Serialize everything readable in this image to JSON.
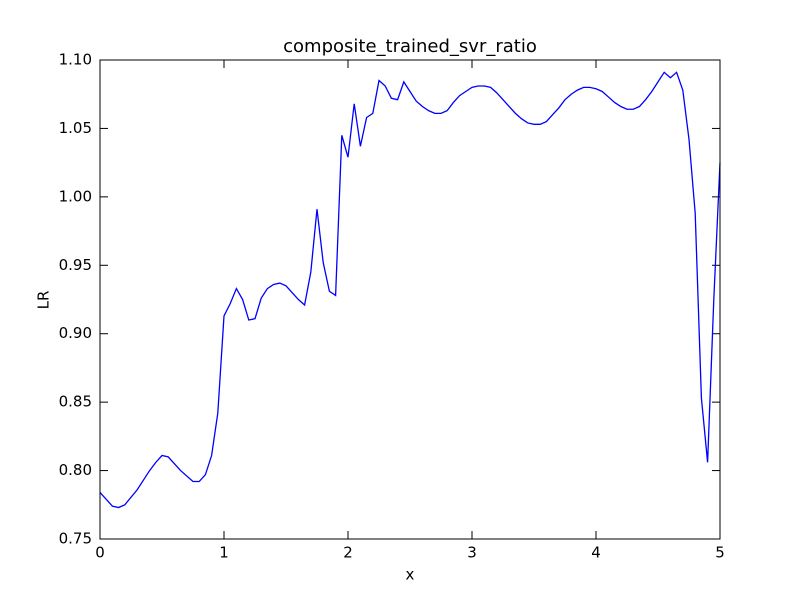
{
  "chart_data": {
    "type": "line",
    "title": "composite_trained_svr_ratio",
    "x_label": "x",
    "y_label": "LR",
    "xlim": [
      0,
      5
    ],
    "ylim": [
      0.75,
      1.1
    ],
    "xticks": [
      0,
      1,
      2,
      3,
      4,
      5
    ],
    "yticks": [
      0.75,
      {
        "value": 0.8,
        "label": "0.80"
      },
      0.85,
      {
        "value": 0.9,
        "label": "0.90"
      },
      0.95,
      {
        "value": 1.0,
        "label": "1.00"
      },
      1.05,
      {
        "value": 1.1,
        "label": "1.10"
      }
    ],
    "series": [
      {
        "color": "#0000ff",
        "x": [
          0,
          0.1,
          0.15,
          0.2,
          0.3,
          0.4,
          0.45,
          0.5,
          0.55,
          0.65,
          0.75,
          0.8,
          0.85,
          0.9,
          0.95,
          1.0,
          1.05,
          1.1,
          1.15,
          1.2,
          1.25,
          1.3,
          1.35,
          1.4,
          1.45,
          1.5,
          1.55,
          1.6,
          1.65,
          1.7,
          1.75,
          1.8,
          1.85,
          1.9,
          1.95,
          2.0,
          2.05,
          2.1,
          2.15,
          2.2,
          2.25,
          2.3,
          2.35,
          2.4,
          2.45,
          2.5,
          2.55,
          2.6,
          2.65,
          2.7,
          2.75,
          2.8,
          2.85,
          2.9,
          2.95,
          3.0,
          3.05,
          3.1,
          3.15,
          3.2,
          3.25,
          3.3,
          3.35,
          3.4,
          3.45,
          3.5,
          3.55,
          3.6,
          3.65,
          3.7,
          3.75,
          3.8,
          3.85,
          3.9,
          3.95,
          4.0,
          4.05,
          4.1,
          4.15,
          4.2,
          4.25,
          4.3,
          4.35,
          4.4,
          4.45,
          4.5,
          4.55,
          4.6,
          4.65,
          4.7,
          4.75,
          4.8,
          4.85,
          4.9,
          4.95,
          5.0
        ],
        "values": [
          0.784,
          0.774,
          0.773,
          0.775,
          0.786,
          0.8,
          0.806,
          0.811,
          0.81,
          0.8,
          0.792,
          0.792,
          0.797,
          0.811,
          0.842,
          0.913,
          0.922,
          0.933,
          0.925,
          0.91,
          0.911,
          0.926,
          0.933,
          0.936,
          0.937,
          0.935,
          0.93,
          0.925,
          0.921,
          0.945,
          0.991,
          0.952,
          0.931,
          0.928,
          1.045,
          1.029,
          1.068,
          1.037,
          1.058,
          1.061,
          1.085,
          1.081,
          1.072,
          1.071,
          1.084,
          1.077,
          1.07,
          1.066,
          1.063,
          1.061,
          1.061,
          1.063,
          1.069,
          1.074,
          1.077,
          1.08,
          1.081,
          1.081,
          1.08,
          1.076,
          1.071,
          1.066,
          1.061,
          1.057,
          1.054,
          1.053,
          1.053,
          1.055,
          1.06,
          1.065,
          1.071,
          1.075,
          1.078,
          1.08,
          1.08,
          1.079,
          1.077,
          1.073,
          1.069,
          1.066,
          1.064,
          1.064,
          1.066,
          1.071,
          1.077,
          1.084,
          1.091,
          1.087,
          1.091,
          1.078,
          1.042,
          0.988,
          0.853,
          0.806,
          0.925,
          1.025
        ]
      }
    ]
  }
}
